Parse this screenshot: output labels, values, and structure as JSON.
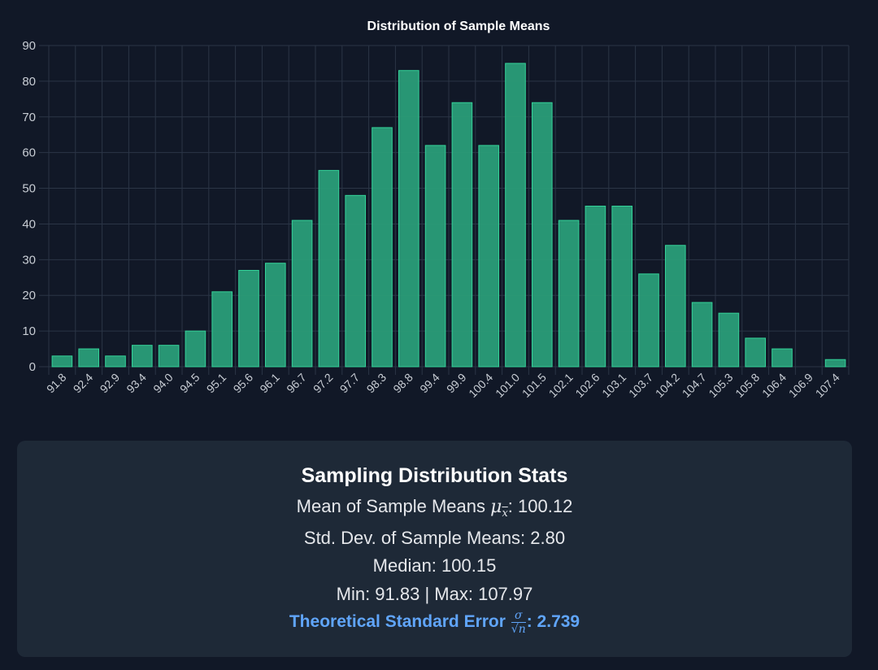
{
  "chart_data": {
    "type": "bar",
    "title": "Distribution of Sample Means",
    "xlabel": "",
    "ylabel": "",
    "ylim": [
      0,
      90
    ],
    "yticks": [
      0,
      10,
      20,
      30,
      40,
      50,
      60,
      70,
      80,
      90
    ],
    "grid": true,
    "categories": [
      "91.8",
      "92.4",
      "92.9",
      "93.4",
      "94.0",
      "94.5",
      "95.1",
      "95.6",
      "96.1",
      "96.7",
      "97.2",
      "97.7",
      "98.3",
      "98.8",
      "99.4",
      "99.9",
      "100.4",
      "101.0",
      "101.5",
      "102.1",
      "102.6",
      "103.1",
      "103.7",
      "104.2",
      "104.7",
      "105.3",
      "105.8",
      "106.4",
      "106.9",
      "107.4"
    ],
    "values": [
      3,
      5,
      3,
      6,
      6,
      10,
      21,
      27,
      29,
      41,
      55,
      48,
      67,
      83,
      62,
      74,
      62,
      85,
      74,
      41,
      45,
      45,
      26,
      34,
      18,
      15,
      8,
      5,
      0,
      2
    ]
  },
  "colors": {
    "background": "#111827",
    "bar_fill": "#2a9d78",
    "bar_stroke": "#34d399",
    "grid": "#2b3546",
    "panel": "#1e2937",
    "accent": "#60a5fa"
  },
  "stats": {
    "title": "Sampling Distribution Stats",
    "mean_label": "Mean of Sample Means",
    "mean_symbol": "μ",
    "mean_subscript": "x",
    "mean_value": ": 100.12",
    "std_text": "Std. Dev. of Sample Means: 2.80",
    "median_text": "Median: 100.15",
    "minmax_text": "Min: 91.83 | Max: 107.97",
    "theoretical_label": "Theoretical Standard Error",
    "theoretical_numerator": "σ",
    "theoretical_denominator_root": "√",
    "theoretical_denominator_var": "n",
    "theoretical_value": ": 2.739"
  }
}
